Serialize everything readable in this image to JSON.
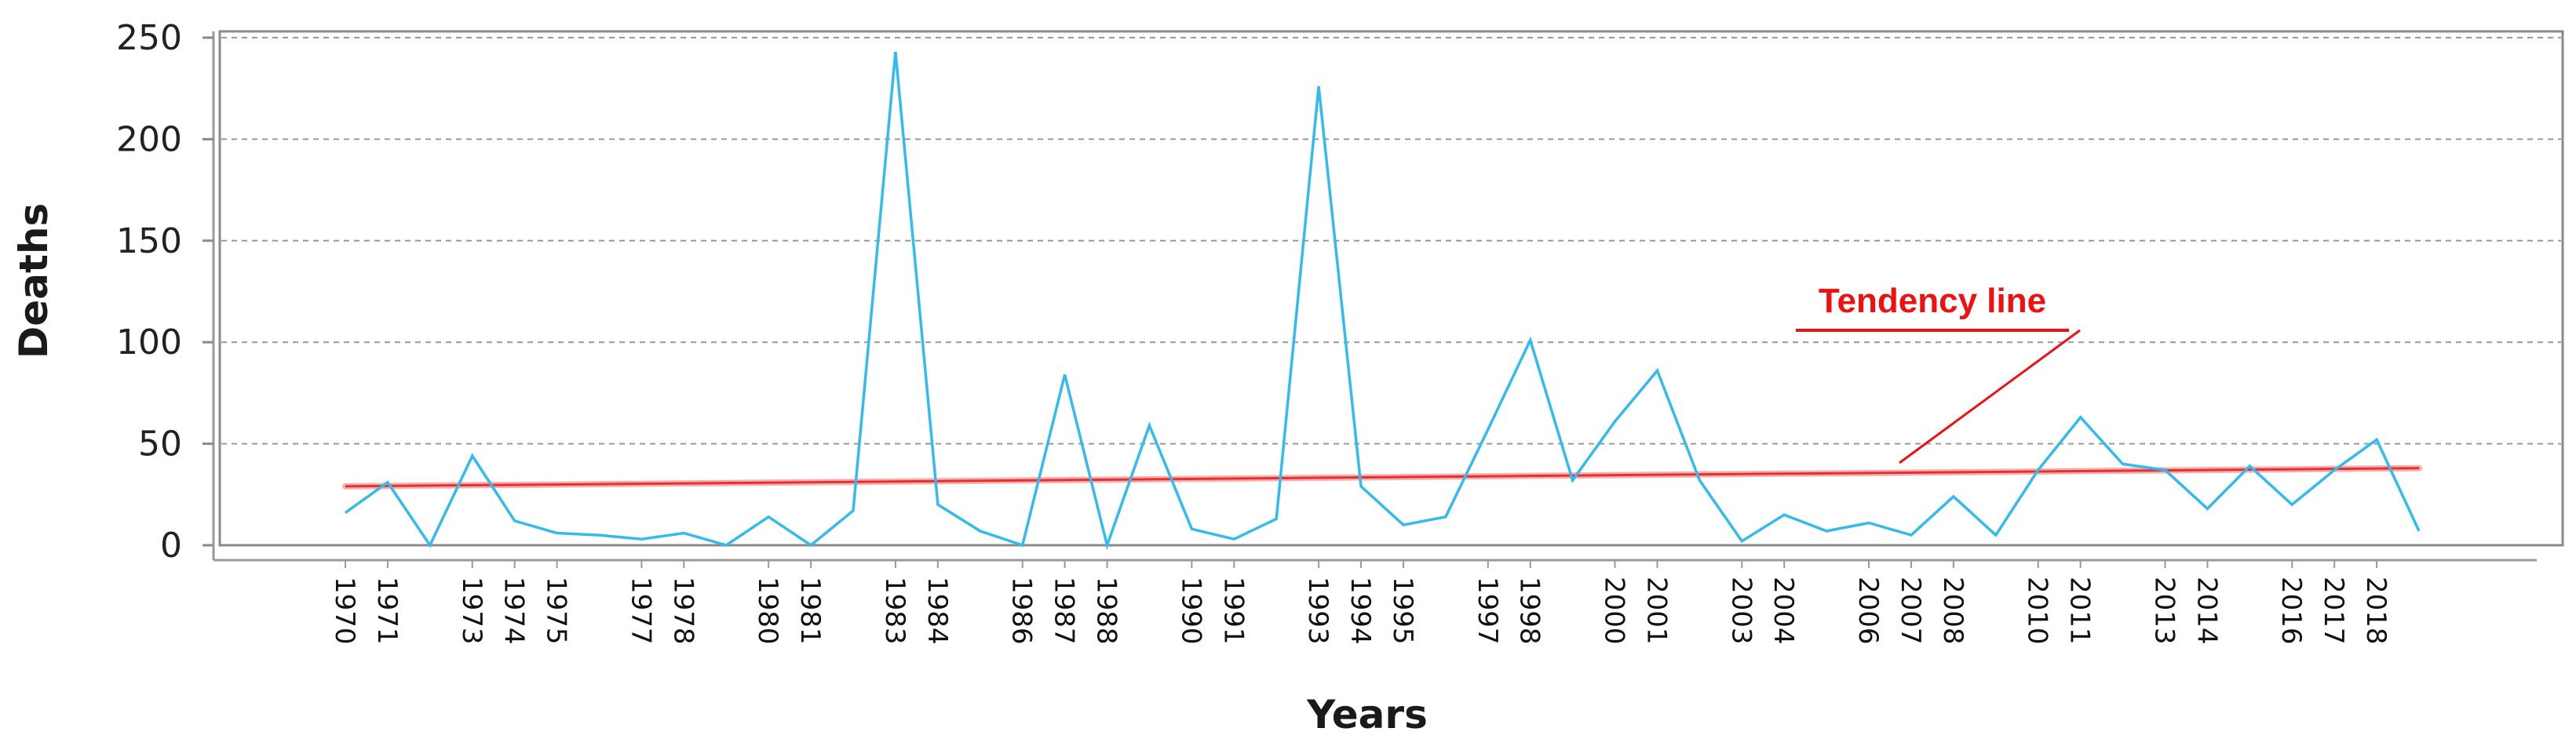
{
  "chart_data": {
    "type": "line",
    "title": "",
    "xlabel": "Years",
    "ylabel": "Deaths",
    "ylim": [
      0,
      250
    ],
    "yticks": [
      0,
      50,
      100,
      150,
      200,
      250
    ],
    "grid": "horizontal dashed",
    "x_tick_labels": [
      "1970",
      "1971",
      "1973",
      "1974",
      "1975",
      "1977",
      "1978",
      "1980",
      "1981",
      "1983",
      "1984",
      "1986",
      "1987",
      "1988",
      "1990",
      "1991",
      "1993",
      "1994",
      "1995",
      "1997",
      "1998",
      "2000",
      "2001",
      "2003",
      "2004",
      "2006",
      "2007",
      "2008",
      "2010",
      "2011",
      "2013",
      "2014",
      "2016",
      "2017",
      "2018"
    ],
    "x": [
      1970,
      1971,
      1972,
      1973,
      1974,
      1975,
      1976,
      1977,
      1978,
      1979,
      1980,
      1981,
      1982,
      1983,
      1984,
      1985,
      1986,
      1987,
      1988,
      1989,
      1990,
      1991,
      1992,
      1993,
      1994,
      1995,
      1996,
      1997,
      1998,
      1999,
      2000,
      2001,
      2002,
      2003,
      2004,
      2005,
      2006,
      2007,
      2008,
      2009,
      2010,
      2011,
      2012,
      2013,
      2014,
      2015,
      2016,
      2017,
      2018,
      2019
    ],
    "series": [
      {
        "values": [
          16,
          31,
          0,
          44,
          12,
          6,
          5,
          3,
          6,
          0,
          14,
          0,
          17,
          243,
          20,
          7,
          0,
          84,
          0,
          59,
          8,
          3,
          13,
          226,
          29,
          10,
          14,
          57,
          101,
          32,
          61,
          86,
          32,
          2,
          15,
          7,
          11,
          5,
          24,
          5,
          37,
          63,
          40,
          37,
          18,
          39,
          20,
          37,
          52,
          7
        ],
        "color": "#33bbee"
      },
      {
        "type": "trend",
        "x": [
          1970,
          2019
        ],
        "values": [
          29,
          38
        ],
        "color": "#e83030"
      }
    ],
    "annotations": [
      {
        "text": "Tendency line",
        "color": "#ee1111"
      }
    ]
  }
}
